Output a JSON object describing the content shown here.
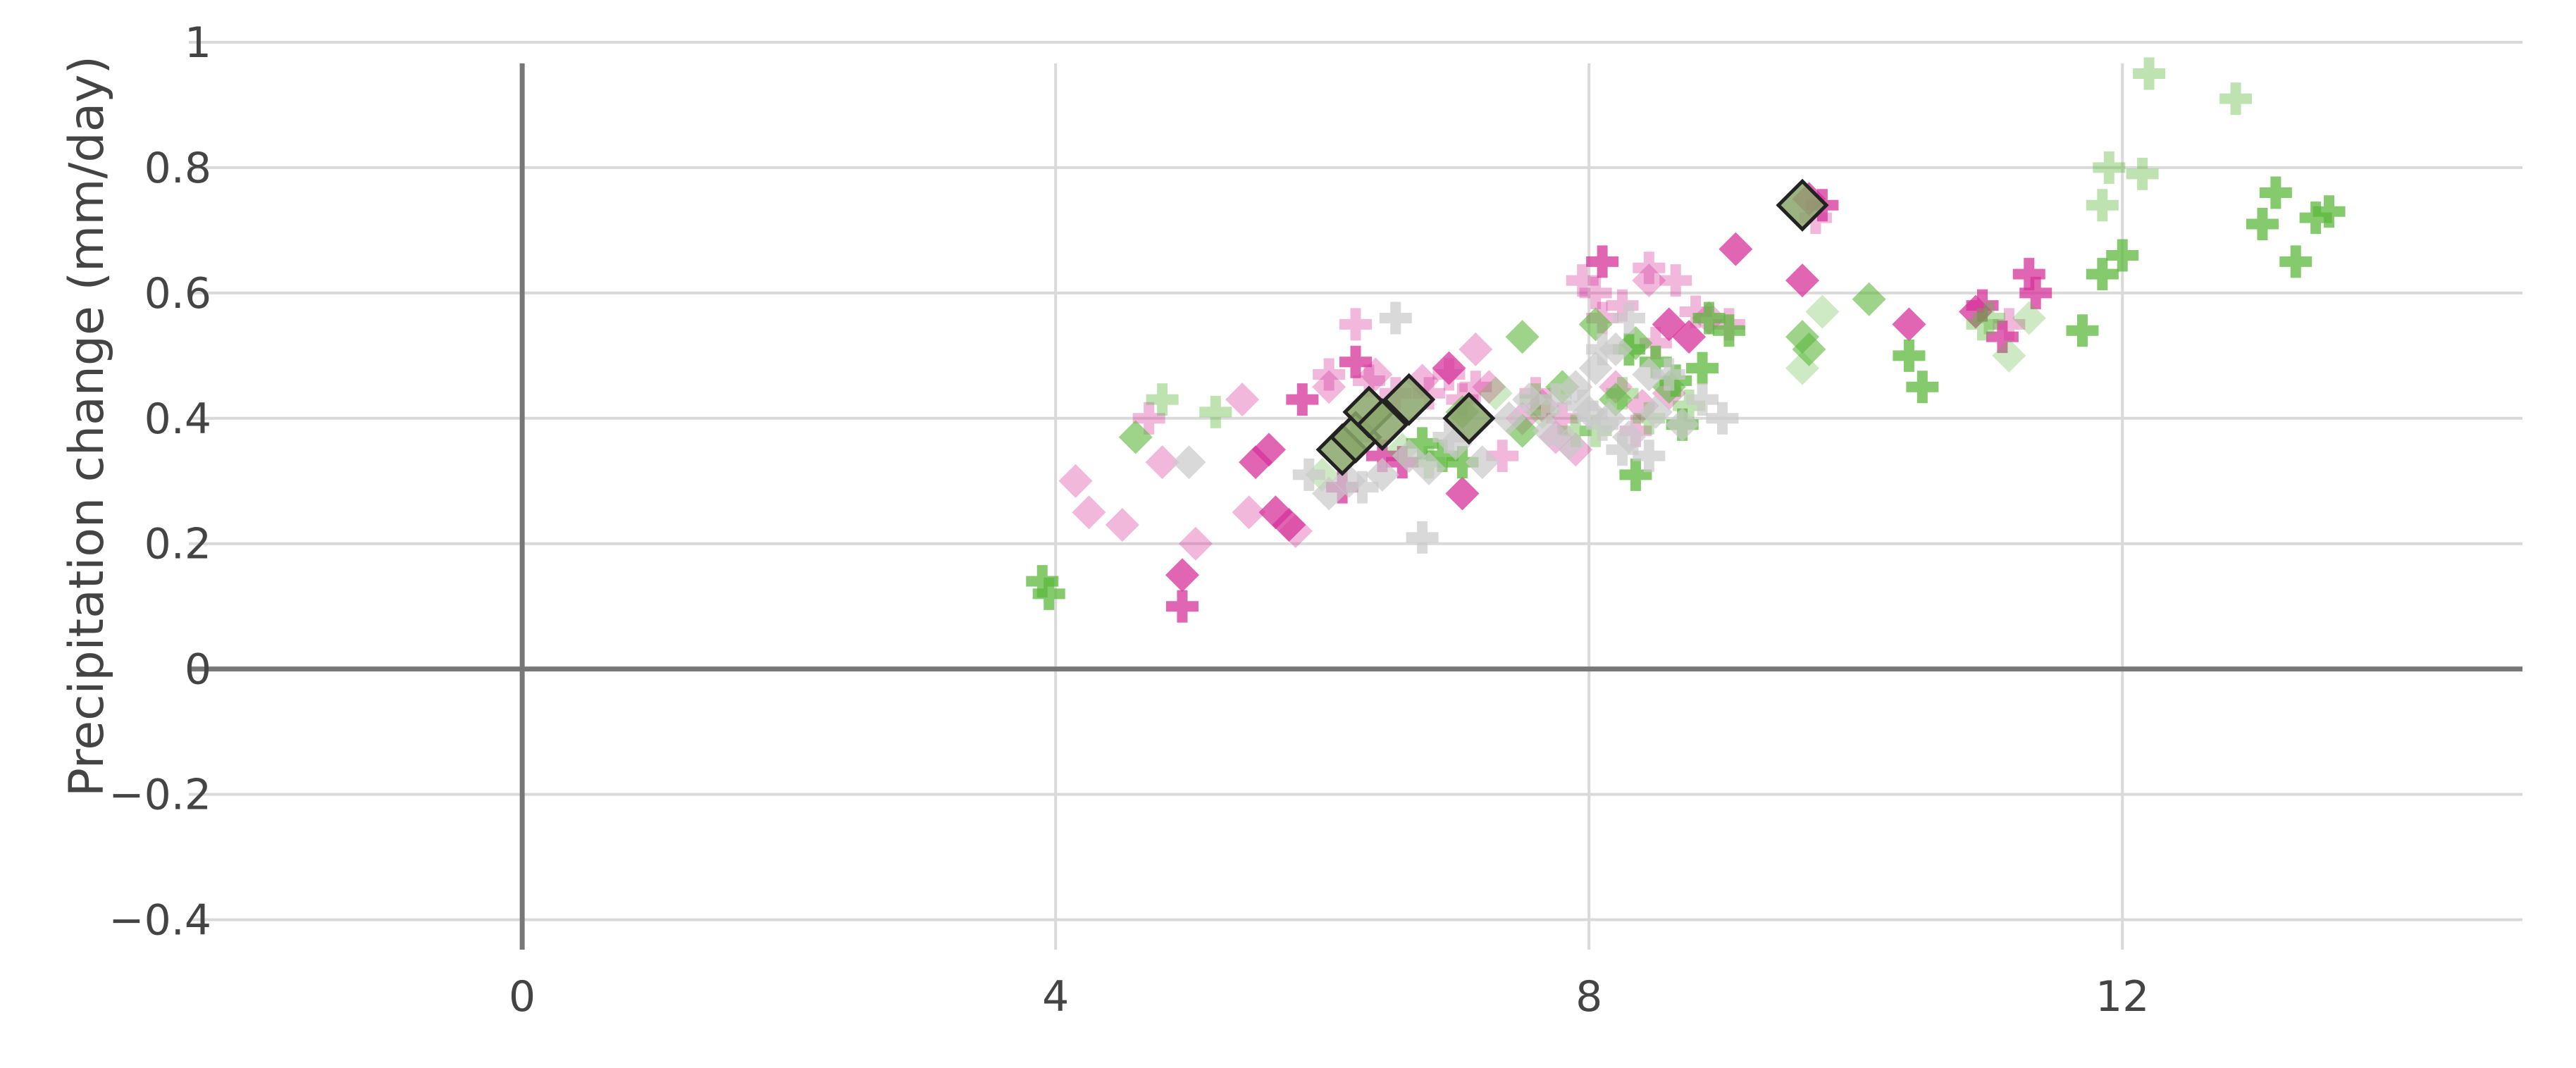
{
  "chart_data": {
    "type": "scatter",
    "title": "",
    "xlabel": "",
    "ylabel": "Precipitation change (mm/day)",
    "xlim": [
      -2.5,
      15
    ],
    "ylim": [
      -0.45,
      1.0
    ],
    "xticks": [
      0,
      4,
      8,
      12
    ],
    "xtick_labels": [
      "0",
      "4",
      "8",
      "12"
    ],
    "yticks": [
      -0.4,
      -0.2,
      0,
      0.2,
      0.4,
      0.6,
      0.8,
      1
    ],
    "ytick_labels": [
      "−0.4",
      "−0.2",
      "0",
      "0.2",
      "0.4",
      "0.6",
      "0.8",
      "1"
    ],
    "grid": true,
    "zero_lines": true,
    "colors": {
      "magenta": "#d6339b",
      "green": "#5cb83c",
      "green_highlight": "#8aa66a",
      "grey": "#c9c9c9",
      "grid": "#d9d9d9",
      "zero_line": "#777777",
      "text": "#444444"
    },
    "series": [
      {
        "marker": "cross",
        "color": "#d6339b",
        "opacity": 0.75,
        "points": [
          [
            4.95,
            0.1
          ],
          [
            5.85,
            0.43
          ],
          [
            6.15,
            0.29
          ],
          [
            6.25,
            0.49
          ],
          [
            6.45,
            0.34
          ],
          [
            6.6,
            0.33
          ],
          [
            8.1,
            0.65
          ],
          [
            11.3,
            0.63
          ],
          [
            11.35,
            0.6
          ],
          [
            11.1,
            0.53
          ],
          [
            10.95,
            0.58
          ],
          [
            9.75,
            0.74
          ]
        ]
      },
      {
        "marker": "diamond",
        "color": "#d6339b",
        "opacity": 0.75,
        "points": [
          [
            4.95,
            0.15
          ],
          [
            5.5,
            0.33
          ],
          [
            5.6,
            0.35
          ],
          [
            5.65,
            0.25
          ],
          [
            5.75,
            0.23
          ],
          [
            6.95,
            0.48
          ],
          [
            7.05,
            0.28
          ],
          [
            9.1,
            0.67
          ],
          [
            9.6,
            0.62
          ],
          [
            10.4,
            0.55
          ],
          [
            10.9,
            0.57
          ],
          [
            9.65,
            0.75
          ],
          [
            8.6,
            0.55
          ],
          [
            8.75,
            0.53
          ]
        ]
      },
      {
        "marker": "diamond",
        "color": "#d6339b",
        "opacity": 0.35,
        "points": [
          [
            4.15,
            0.3
          ],
          [
            4.25,
            0.25
          ],
          [
            4.5,
            0.23
          ],
          [
            4.8,
            0.33
          ],
          [
            5.05,
            0.2
          ],
          [
            5.4,
            0.43
          ],
          [
            5.45,
            0.25
          ],
          [
            5.8,
            0.22
          ],
          [
            6.05,
            0.45
          ],
          [
            6.4,
            0.47
          ],
          [
            6.75,
            0.46
          ],
          [
            7.15,
            0.51
          ],
          [
            7.25,
            0.45
          ],
          [
            7.5,
            0.4
          ],
          [
            7.75,
            0.37
          ],
          [
            7.9,
            0.35
          ],
          [
            8.2,
            0.45
          ],
          [
            8.4,
            0.42
          ],
          [
            8.6,
            0.44
          ],
          [
            8.9,
            0.56
          ],
          [
            8.45,
            0.62
          ],
          [
            7.65,
            0.42
          ]
        ]
      },
      {
        "marker": "cross",
        "color": "#d6339b",
        "opacity": 0.35,
        "points": [
          [
            4.7,
            0.4
          ],
          [
            6.25,
            0.55
          ],
          [
            6.05,
            0.47
          ],
          [
            6.35,
            0.46
          ],
          [
            6.55,
            0.44
          ],
          [
            6.8,
            0.44
          ],
          [
            6.95,
            0.47
          ],
          [
            7.05,
            0.43
          ],
          [
            7.15,
            0.45
          ],
          [
            7.35,
            0.34
          ],
          [
            7.6,
            0.44
          ],
          [
            7.8,
            0.4
          ],
          [
            7.95,
            0.62
          ],
          [
            8.05,
            0.6
          ],
          [
            8.25,
            0.58
          ],
          [
            8.45,
            0.64
          ],
          [
            8.65,
            0.62
          ],
          [
            8.35,
            0.38
          ],
          [
            8.5,
            0.52
          ],
          [
            8.8,
            0.57
          ],
          [
            9.05,
            0.55
          ],
          [
            11.15,
            0.55
          ],
          [
            9.7,
            0.72
          ],
          [
            8.1,
            0.56
          ]
        ]
      },
      {
        "marker": "cross",
        "color": "#5cb83c",
        "opacity": 0.75,
        "points": [
          [
            3.9,
            0.14
          ],
          [
            3.95,
            0.12
          ],
          [
            6.75,
            0.36
          ],
          [
            6.9,
            0.34
          ],
          [
            7.05,
            0.33
          ],
          [
            8.35,
            0.31
          ],
          [
            8.5,
            0.49
          ],
          [
            8.65,
            0.46
          ],
          [
            8.7,
            0.39
          ],
          [
            8.85,
            0.48
          ],
          [
            8.9,
            0.56
          ],
          [
            9.05,
            0.54
          ],
          [
            10.4,
            0.5
          ],
          [
            10.5,
            0.45
          ],
          [
            11.7,
            0.54
          ],
          [
            11.85,
            0.63
          ],
          [
            12.0,
            0.66
          ],
          [
            13.05,
            0.71
          ],
          [
            13.15,
            0.76
          ],
          [
            13.3,
            0.65
          ],
          [
            13.45,
            0.72
          ],
          [
            13.55,
            0.73
          ],
          [
            8.3,
            0.51
          ]
        ]
      },
      {
        "marker": "diamond",
        "color": "#5cb83c",
        "opacity": 0.6,
        "points": [
          [
            4.6,
            0.37
          ],
          [
            7.05,
            0.41
          ],
          [
            7.5,
            0.53
          ],
          [
            7.5,
            0.38
          ],
          [
            7.8,
            0.45
          ],
          [
            8.05,
            0.55
          ],
          [
            8.2,
            0.43
          ],
          [
            8.35,
            0.52
          ],
          [
            8.6,
            0.45
          ],
          [
            9.6,
            0.53
          ],
          [
            9.65,
            0.51
          ],
          [
            10.1,
            0.59
          ]
        ]
      },
      {
        "marker": "cross",
        "color": "#5cb83c",
        "opacity": 0.4,
        "points": [
          [
            4.8,
            0.43
          ],
          [
            5.2,
            0.41
          ],
          [
            6.25,
            0.37
          ],
          [
            6.8,
            0.33
          ],
          [
            7.6,
            0.43
          ],
          [
            7.9,
            0.38
          ],
          [
            8.05,
            0.38
          ],
          [
            8.25,
            0.44
          ],
          [
            8.45,
            0.4
          ],
          [
            8.75,
            0.42
          ],
          [
            10.95,
            0.55
          ],
          [
            11.0,
            0.56
          ],
          [
            11.85,
            0.74
          ],
          [
            11.9,
            0.8
          ],
          [
            12.15,
            0.79
          ],
          [
            12.2,
            0.95
          ],
          [
            12.85,
            0.91
          ]
        ]
      },
      {
        "marker": "diamond",
        "color": "#5cb83c",
        "opacity": 0.3,
        "points": [
          [
            6.0,
            0.31
          ],
          [
            6.6,
            0.35
          ],
          [
            7.3,
            0.44
          ],
          [
            7.65,
            0.41
          ],
          [
            9.75,
            0.57
          ],
          [
            9.6,
            0.48
          ],
          [
            11.15,
            0.5
          ],
          [
            11.3,
            0.56
          ]
        ]
      },
      {
        "marker": "diamond",
        "color": "#c9c9c9",
        "opacity": 0.7,
        "points": [
          [
            5.0,
            0.33
          ],
          [
            6.05,
            0.28
          ],
          [
            6.2,
            0.3
          ],
          [
            6.45,
            0.31
          ],
          [
            6.65,
            0.34
          ],
          [
            6.8,
            0.32
          ],
          [
            7.0,
            0.36
          ],
          [
            7.2,
            0.33
          ],
          [
            7.4,
            0.4
          ],
          [
            7.55,
            0.43
          ],
          [
            7.7,
            0.38
          ],
          [
            7.85,
            0.36
          ],
          [
            8.0,
            0.41
          ],
          [
            8.15,
            0.4
          ],
          [
            8.3,
            0.37
          ],
          [
            8.5,
            0.41
          ],
          [
            8.7,
            0.39
          ],
          [
            7.9,
            0.45
          ],
          [
            8.05,
            0.48
          ],
          [
            8.2,
            0.51
          ],
          [
            8.45,
            0.47
          ]
        ]
      },
      {
        "marker": "cross",
        "color": "#c9c9c9",
        "opacity": 0.7,
        "points": [
          [
            6.3,
            0.29
          ],
          [
            6.55,
            0.56
          ],
          [
            6.75,
            0.21
          ],
          [
            6.95,
            0.37
          ],
          [
            7.75,
            0.43
          ],
          [
            7.95,
            0.42
          ],
          [
            8.1,
            0.39
          ],
          [
            8.25,
            0.35
          ],
          [
            8.45,
            0.34
          ],
          [
            8.6,
            0.47
          ],
          [
            8.85,
            0.43
          ],
          [
            9.0,
            0.4
          ],
          [
            5.9,
            0.31
          ],
          [
            8.1,
            0.51
          ],
          [
            8.3,
            0.56
          ]
        ]
      },
      {
        "marker": "diamond",
        "color": "#8aa66a",
        "opacity": 0.85,
        "outline": "#222222",
        "points": [
          [
            6.15,
            0.35
          ],
          [
            6.25,
            0.37
          ],
          [
            6.35,
            0.41
          ],
          [
            6.45,
            0.39
          ],
          [
            6.65,
            0.43
          ],
          [
            7.1,
            0.4
          ],
          [
            9.6,
            0.74
          ]
        ]
      }
    ]
  }
}
